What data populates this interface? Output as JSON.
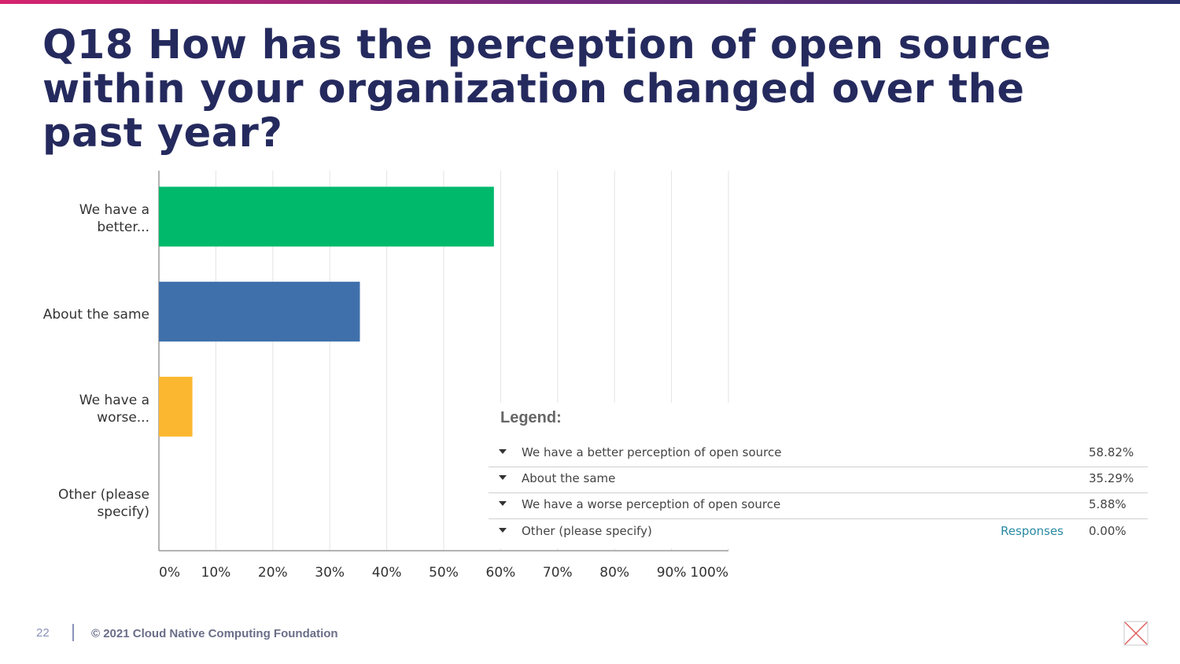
{
  "slide": {
    "title": "Q18 How has the perception of open source within your organization changed over the past year?",
    "page_number": "22",
    "copyright": "© 2021 Cloud Native Computing Foundation"
  },
  "legend": {
    "title": "Legend:",
    "responses_label": "Responses",
    "items": [
      {
        "label": "We have a better perception of open source",
        "percent": "58.82%"
      },
      {
        "label": "About the same",
        "percent": "35.29%"
      },
      {
        "label": "We have a worse perception of open source",
        "percent": "5.88%"
      },
      {
        "label": "Other (please specify)",
        "percent": "0.00%"
      }
    ]
  },
  "chart_data": {
    "type": "bar",
    "orientation": "horizontal",
    "categories": [
      "We have a better...",
      "About the same",
      "We have a worse...",
      "Other (please specify)"
    ],
    "values": [
      58.82,
      35.29,
      5.88,
      0.0
    ],
    "colors": [
      "#00b96b",
      "#3f70ab",
      "#fbb72f",
      "#9aa0a6"
    ],
    "xlim": [
      0,
      100
    ],
    "xticks": [
      "0%",
      "10%",
      "20%",
      "30%",
      "40%",
      "50%",
      "60%",
      "70%",
      "80%",
      "90%",
      "100%"
    ],
    "grid": true
  }
}
